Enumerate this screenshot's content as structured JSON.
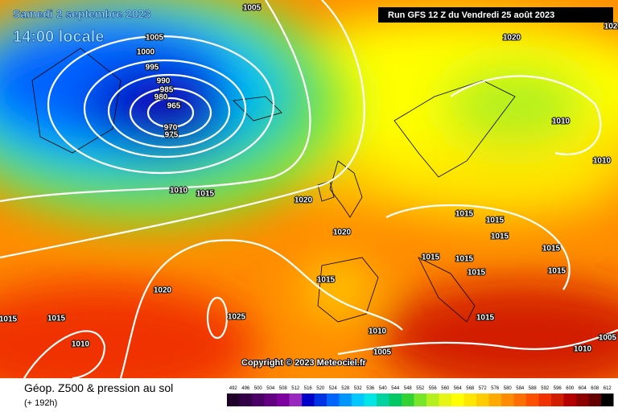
{
  "header": {
    "date": "Samedi 2 septembre 2023",
    "time": "14:00 locale",
    "run": "Run GFS 12 Z du Vendredi 25 août 2023"
  },
  "copyright": "Copyright © 2023 Meteociel.fr",
  "footer": {
    "title": "Géop. Z500 & pression au sol",
    "lead": "(+ 192h)"
  },
  "isobar_labels": [
    "1005",
    "1005",
    "1000",
    "995",
    "990",
    "985",
    "980",
    "965",
    "970",
    "975",
    "1020",
    "1010",
    "1010",
    "1010",
    "1015",
    "1020",
    "1020",
    "1015",
    "1015",
    "1015",
    "1015",
    "1015",
    "1015",
    "1015",
    "1015",
    "1015",
    "1020",
    "1015",
    "1015",
    "1025",
    "1015",
    "1010",
    "1010",
    "1010",
    "1005",
    "1005",
    "102"
  ],
  "legend": [
    {
      "label": "492",
      "color": "#1e0028"
    },
    {
      "label": "496",
      "color": "#320046"
    },
    {
      "label": "500",
      "color": "#4a0064"
    },
    {
      "label": "504",
      "color": "#640082"
    },
    {
      "label": "508",
      "color": "#7e00a0"
    },
    {
      "label": "512",
      "color": "#9a28be"
    },
    {
      "label": "516",
      "color": "#0000c8"
    },
    {
      "label": "520",
      "color": "#0032e6"
    },
    {
      "label": "524",
      "color": "#0064ff"
    },
    {
      "label": "528",
      "color": "#0096ff"
    },
    {
      "label": "532",
      "color": "#00c8ff"
    },
    {
      "label": "536",
      "color": "#00e6e6"
    },
    {
      "label": "540",
      "color": "#00d2a0"
    },
    {
      "label": "544",
      "color": "#00c864"
    },
    {
      "label": "548",
      "color": "#32d232"
    },
    {
      "label": "552",
      "color": "#78e628"
    },
    {
      "label": "556",
      "color": "#b4f01e"
    },
    {
      "label": "560",
      "color": "#e6f514"
    },
    {
      "label": "564",
      "color": "#ffff00"
    },
    {
      "label": "568",
      "color": "#ffe600"
    },
    {
      "label": "572",
      "color": "#ffcc00"
    },
    {
      "label": "576",
      "color": "#ffaa00"
    },
    {
      "label": "580",
      "color": "#ff8c00"
    },
    {
      "label": "584",
      "color": "#ff6e00"
    },
    {
      "label": "588",
      "color": "#ff5000"
    },
    {
      "label": "592",
      "color": "#f03200"
    },
    {
      "label": "596",
      "color": "#d21e00"
    },
    {
      "label": "600",
      "color": "#b40000"
    },
    {
      "label": "604",
      "color": "#8c0000"
    },
    {
      "label": "608",
      "color": "#640000"
    },
    {
      "label": "612",
      "color": "#000000"
    }
  ]
}
